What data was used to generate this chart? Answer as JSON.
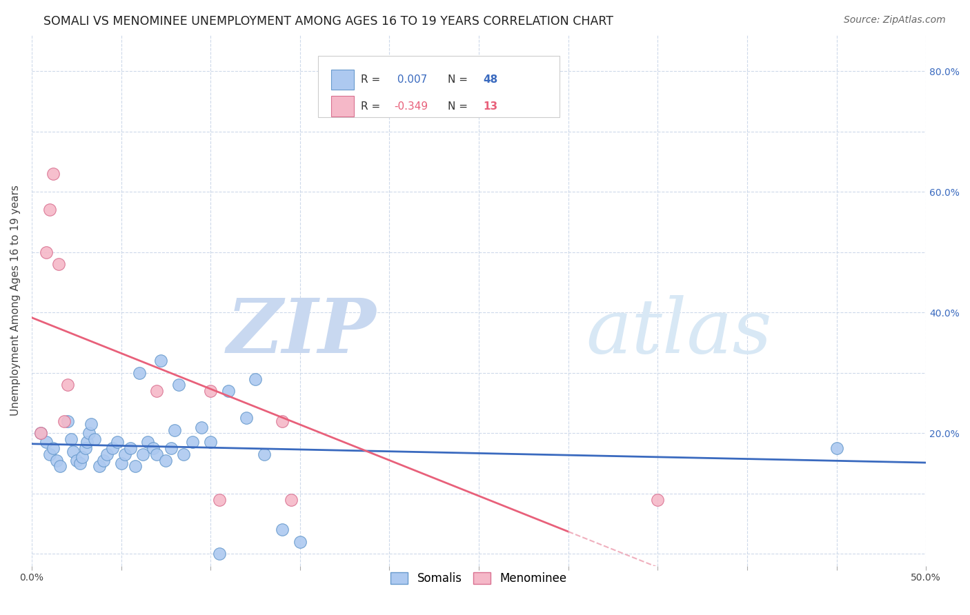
{
  "title": "SOMALI VS MENOMINEE UNEMPLOYMENT AMONG AGES 16 TO 19 YEARS CORRELATION CHART",
  "source": "Source: ZipAtlas.com",
  "ylabel": "Unemployment Among Ages 16 to 19 years",
  "xlim": [
    0.0,
    0.5
  ],
  "ylim": [
    -0.02,
    0.86
  ],
  "xticks": [
    0.0,
    0.05,
    0.1,
    0.15,
    0.2,
    0.25,
    0.3,
    0.35,
    0.4,
    0.45,
    0.5
  ],
  "yticks": [
    0.0,
    0.1,
    0.2,
    0.3,
    0.4,
    0.5,
    0.6,
    0.7,
    0.8
  ],
  "somali_R": 0.007,
  "somali_N": 48,
  "menominee_R": -0.349,
  "menominee_N": 13,
  "somali_color": "#adc9f0",
  "somali_edge_color": "#6699cc",
  "menominee_color": "#f5b8c8",
  "menominee_edge_color": "#d97090",
  "trend_somali_color": "#3a6abf",
  "trend_menominee_solid_color": "#e8607a",
  "trend_menominee_dashed_color": "#f0b0be",
  "watermark_zip_color": "#c8daf5",
  "watermark_atlas_color": "#d5e8f8",
  "background_color": "#ffffff",
  "grid_color": "#c8d5e8",
  "somali_x": [
    0.005,
    0.008,
    0.01,
    0.012,
    0.014,
    0.016,
    0.02,
    0.022,
    0.023,
    0.025,
    0.027,
    0.028,
    0.03,
    0.031,
    0.032,
    0.033,
    0.035,
    0.038,
    0.04,
    0.042,
    0.045,
    0.048,
    0.05,
    0.052,
    0.055,
    0.058,
    0.06,
    0.062,
    0.065,
    0.068,
    0.07,
    0.072,
    0.075,
    0.078,
    0.08,
    0.082,
    0.085,
    0.09,
    0.095,
    0.1,
    0.105,
    0.11,
    0.12,
    0.125,
    0.13,
    0.14,
    0.15,
    0.45
  ],
  "somali_y": [
    0.2,
    0.185,
    0.165,
    0.175,
    0.155,
    0.145,
    0.22,
    0.19,
    0.17,
    0.155,
    0.15,
    0.16,
    0.175,
    0.185,
    0.2,
    0.215,
    0.19,
    0.145,
    0.155,
    0.165,
    0.175,
    0.185,
    0.15,
    0.165,
    0.175,
    0.145,
    0.3,
    0.165,
    0.185,
    0.175,
    0.165,
    0.32,
    0.155,
    0.175,
    0.205,
    0.28,
    0.165,
    0.185,
    0.21,
    0.185,
    0.0,
    0.27,
    0.225,
    0.29,
    0.165,
    0.04,
    0.02,
    0.175
  ],
  "menominee_x": [
    0.005,
    0.008,
    0.01,
    0.012,
    0.015,
    0.018,
    0.02,
    0.07,
    0.1,
    0.105,
    0.14,
    0.145,
    0.35
  ],
  "menominee_y": [
    0.2,
    0.5,
    0.57,
    0.63,
    0.48,
    0.22,
    0.28,
    0.27,
    0.27,
    0.09,
    0.22,
    0.09,
    0.09
  ]
}
